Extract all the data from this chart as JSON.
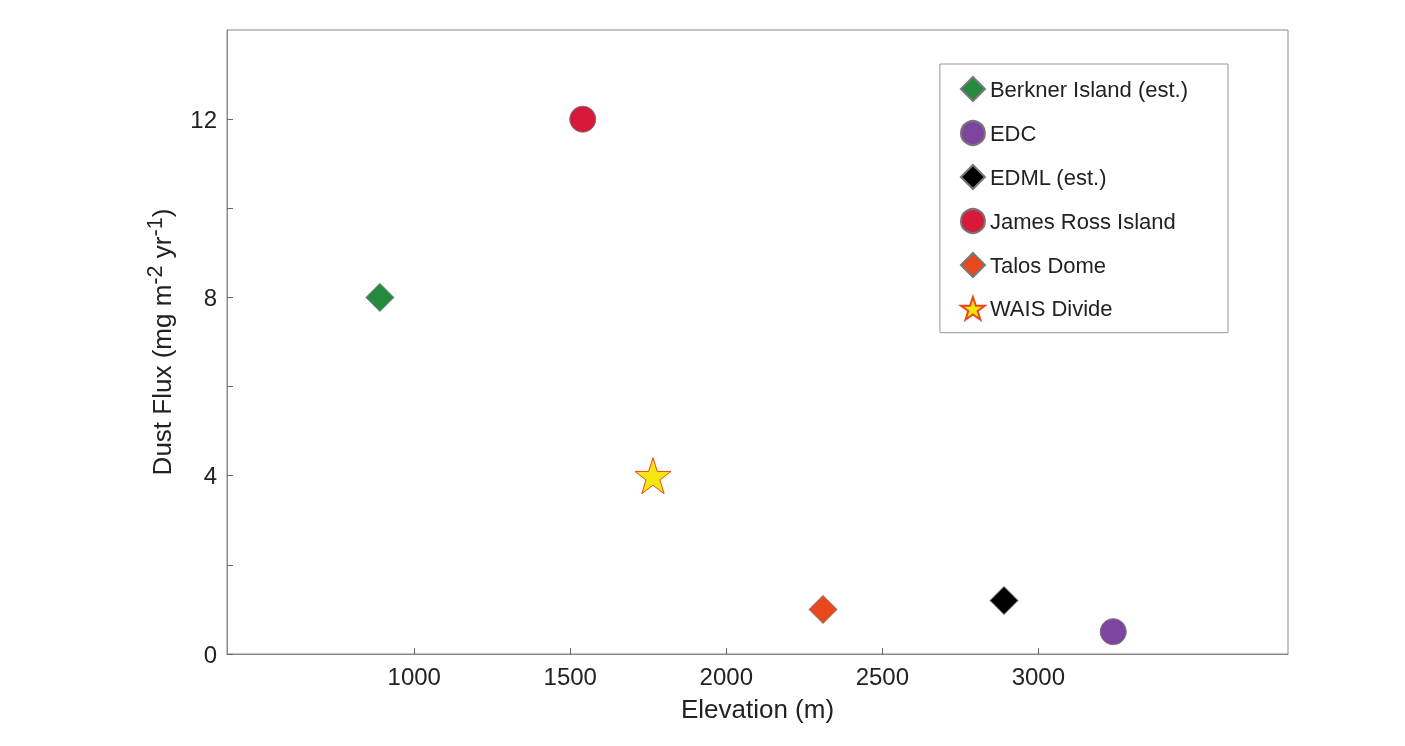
{
  "chart_data": {
    "type": "scatter",
    "xlabel": "Elevation (m)",
    "ylabel": "Dust Flux (mg m$^{-2}$ yr$^{-1}$)",
    "xlim": [
      400,
      3800
    ],
    "xticks": [
      1000,
      1500,
      2000,
      2500,
      3000
    ],
    "ylim": [
      0,
      14
    ],
    "yticks": [
      0,
      {
        "value": 2,
        "label": null
      },
      4,
      {
        "value": 6,
        "label": null
      },
      8,
      {
        "value": 10,
        "label": null
      },
      12
    ],
    "grid": false,
    "legend": "top right",
    "series": [
      {
        "name": "Berkner Island (est.)",
        "color": "#238a3e",
        "marker": "diamond",
        "x": [
          890
        ],
        "values": [
          8
        ]
      },
      {
        "name": "EDC",
        "color": "#7d45a0",
        "marker": "circle",
        "x": [
          3240
        ],
        "values": [
          0.5
        ]
      },
      {
        "name": "EDML (est.)",
        "color": "#000000",
        "marker": "diamond",
        "x": [
          2890
        ],
        "values": [
          1.2
        ]
      },
      {
        "name": "James Ross Island",
        "color": "#d7193a",
        "marker": "circle",
        "x": [
          1540
        ],
        "values": [
          12
        ]
      },
      {
        "name": "Talos Dome",
        "color": "#e8481c",
        "marker": "diamond",
        "x": [
          2310
        ],
        "values": [
          1
        ]
      },
      {
        "name": "WAIS Divide",
        "color": "#f5e60f",
        "marker": "star",
        "x": [
          1765
        ],
        "values": [
          4
        ]
      }
    ]
  }
}
